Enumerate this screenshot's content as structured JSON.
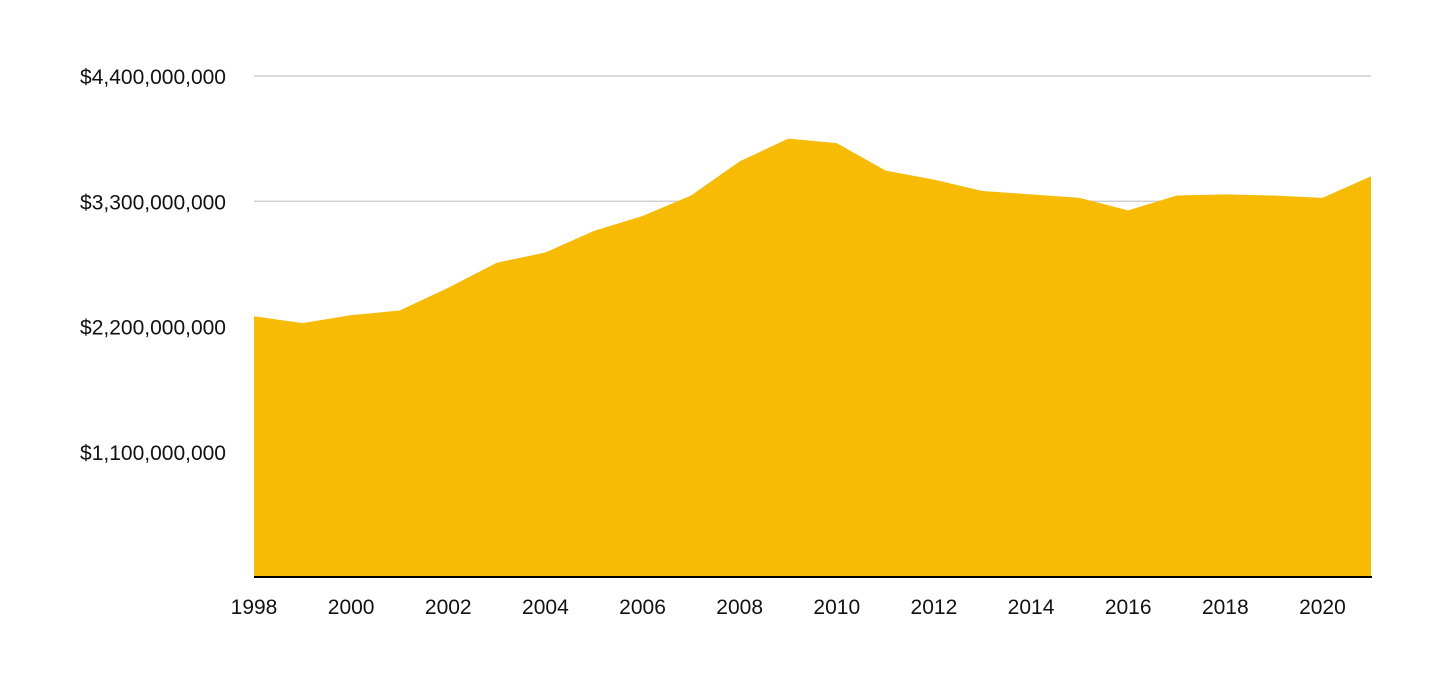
{
  "chart_data": {
    "type": "area",
    "title": "",
    "xlabel": "",
    "ylabel": "",
    "x": [
      1998,
      1999,
      2000,
      2001,
      2002,
      2003,
      2004,
      2005,
      2006,
      2007,
      2008,
      2009,
      2010,
      2011,
      2012,
      2013,
      2014,
      2015,
      2016,
      2017,
      2018,
      2019,
      2020,
      2021
    ],
    "series": [
      {
        "values": [
          2290000000,
          2230000000,
          2300000000,
          2340000000,
          2540000000,
          2760000000,
          2850000000,
          3040000000,
          3170000000,
          3350000000,
          3650000000,
          3850000000,
          3810000000,
          3570000000,
          3490000000,
          3390000000,
          3360000000,
          3330000000,
          3220000000,
          3350000000,
          3360000000,
          3350000000,
          3330000000,
          3520000000
        ],
        "color": "#F7BB04"
      }
    ],
    "xlim": [
      1998,
      2021
    ],
    "ylim": [
      0,
      4400000000
    ],
    "x_ticks": [
      "1998",
      "2000",
      "2002",
      "2004",
      "2006",
      "2008",
      "2010",
      "2012",
      "2014",
      "2016",
      "2018",
      "2020"
    ],
    "y_ticks": [
      {
        "value": 1100000000,
        "label": "$1,100,000,000"
      },
      {
        "value": 2200000000,
        "label": "$2,200,000,000"
      },
      {
        "value": 3300000000,
        "label": "$3,300,000,000"
      },
      {
        "value": 4400000000,
        "label": "$4,400,000,000"
      }
    ],
    "grid": true,
    "legend": "none"
  }
}
